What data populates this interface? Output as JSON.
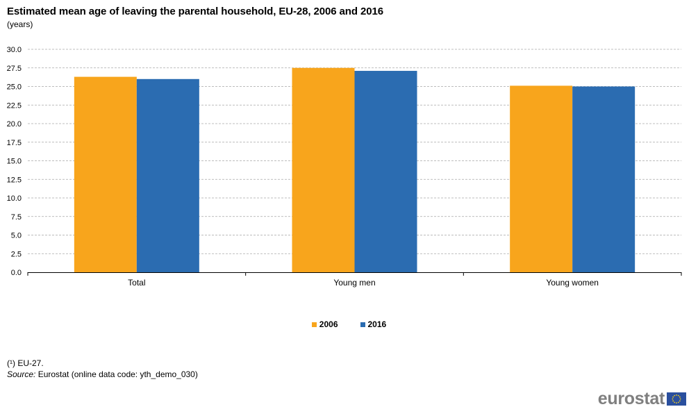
{
  "title": "Estimated mean age of leaving the parental household, EU-28, 2006 and 2016",
  "subtitle": "(years)",
  "footnote": "(¹) EU-27.",
  "source_label": "Source:",
  "source_text": "Eurostat (online data code: yth_demo_030)",
  "logo_text": "eurostat",
  "colors": {
    "series_2006": "#f8a51c",
    "series_2016": "#2b6cb1",
    "grid": "#a6a6a6",
    "logo_flag": "#2a4f9e",
    "logo_stars": "#f7d117"
  },
  "chart_data": {
    "type": "bar",
    "title": "Estimated mean age of leaving the parental household, EU-28, 2006 and 2016",
    "subtitle": "(years)",
    "categories": [
      "Total",
      "Young men",
      "Young women"
    ],
    "series": [
      {
        "name": "2006",
        "values": [
          26.3,
          27.5,
          25.1
        ]
      },
      {
        "name": "2016",
        "values": [
          26.0,
          27.1,
          25.0
        ]
      }
    ],
    "ylim": [
      0,
      30
    ],
    "ytick_labels": [
      "0.0",
      "2.5",
      "5.0",
      "7.5",
      "10.0",
      "12.5",
      "15.0",
      "17.5",
      "20.0",
      "22.5",
      "25.0",
      "27.5",
      "30.0"
    ],
    "grid": true,
    "legend_position": "bottom-center"
  }
}
